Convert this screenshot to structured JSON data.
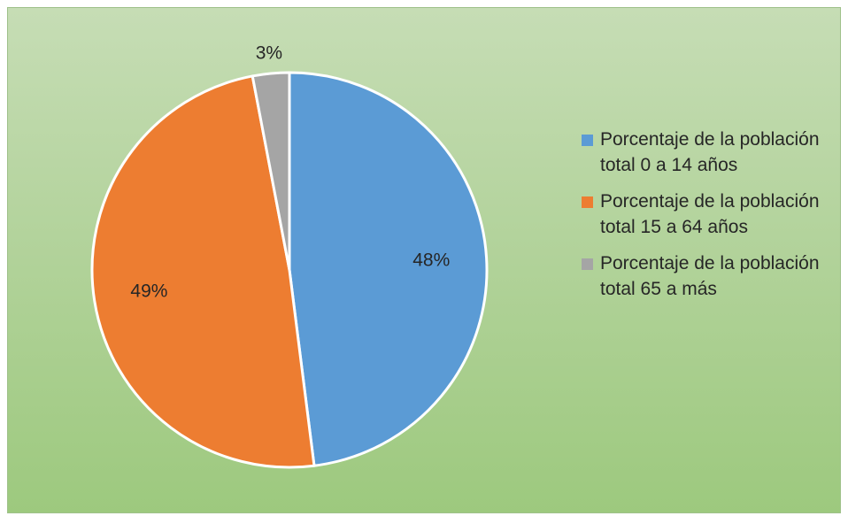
{
  "chart_data": {
    "type": "pie",
    "title": "",
    "legend_position": "right",
    "slices": [
      {
        "label": "Porcentaje de la población total 0 a 14 años",
        "value": 48,
        "value_label": "48%",
        "color": "#5b9bd5"
      },
      {
        "label": "Porcentaje de la población total 15 a 64 años",
        "value": 49,
        "value_label": "49%",
        "color": "#ed7d31"
      },
      {
        "label": "Porcentaje de la población total 65 a más",
        "value": 3,
        "value_label": "3%",
        "color": "#a5a5a5"
      }
    ]
  },
  "colors": {
    "slice_border": "#ffffff"
  }
}
